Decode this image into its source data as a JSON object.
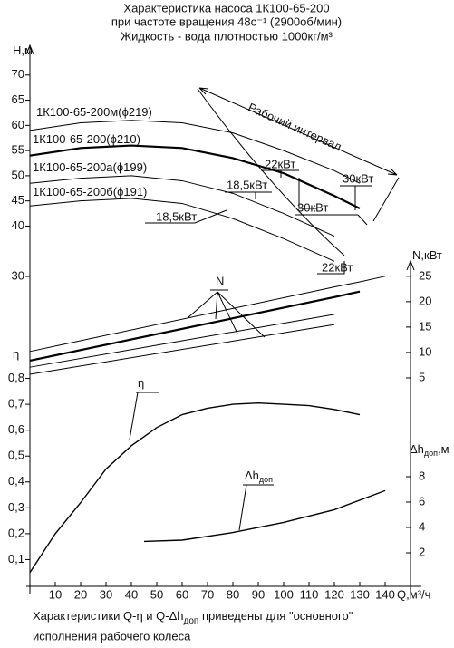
{
  "title": [
    "Характеристика насоса 1К100-65-200",
    "при частоте вращения 48с⁻¹ (2900об/мин)",
    "Жидкость - вода плотностью 1000кг/м³"
  ],
  "annotations": [
    "Рабочий интервал",
    "22кВт",
    "18,5кВт",
    "30кВт",
    "30кВт",
    "18,5кВт",
    "22кВт",
    "N"
  ],
  "footnote": {
    "before": "Характеристики Q-η и Q-Δh",
    "sub": "доп",
    "after": " приведены для \"основного\"",
    "line2": "исполнения рабочего колеса"
  },
  "chart_data": [
    {
      "type": "line",
      "ylabel": "Н,м",
      "axis_side": "left",
      "grid": false,
      "xlim": [
        0,
        150
      ],
      "ylim": [
        30,
        75
      ],
      "yticks": [
        30,
        40,
        45,
        50,
        55,
        60,
        65,
        70
      ],
      "x": [
        0,
        20,
        40,
        60,
        80,
        100,
        120,
        130
      ],
      "series": [
        {
          "name": "1К100-65-200м(ϕ219)",
          "color": "#000000",
          "width": 1,
          "values": [
            59,
            60.5,
            61,
            60.5,
            58.5,
            55,
            51,
            48.5
          ]
        },
        {
          "name": "1К100-65-200(ϕ210)",
          "color": "#000000",
          "width": 2.2,
          "values": [
            54,
            55.5,
            56,
            55.5,
            53.5,
            50.5,
            46,
            43.5
          ]
        },
        {
          "name": "1К100-65-200а(ϕ199)",
          "color": "#000000",
          "width": 1,
          "values": [
            48.5,
            49.5,
            50,
            49,
            46.5,
            42.5,
            38,
            null
          ]
        },
        {
          "name": "1К100-65-200б(ϕ191)",
          "color": "#000000",
          "width": 1,
          "values": [
            44,
            45,
            45.5,
            44.5,
            41.5,
            37.5,
            33,
            null
          ]
        }
      ]
    },
    {
      "type": "line",
      "ylabel": "N,кВт",
      "axis_side": "right",
      "grid": false,
      "xlim": [
        0,
        150
      ],
      "ylim": [
        0,
        28
      ],
      "yticks": [
        5,
        10,
        15,
        20,
        25
      ],
      "x": [
        0,
        120,
        130,
        140
      ],
      "series": [
        {
          "color": "#000000",
          "width": 1,
          "values": [
            10.2,
            22.9,
            23.9,
            25
          ]
        },
        {
          "color": "#000000",
          "width": 2.2,
          "values": [
            8.4,
            20.9,
            22.0,
            null
          ]
        },
        {
          "color": "#000000",
          "width": 1,
          "values": [
            7.1,
            17.5,
            null,
            null
          ]
        },
        {
          "color": "#000000",
          "width": 1,
          "values": [
            5.7,
            15.5,
            null,
            null
          ]
        }
      ]
    },
    {
      "type": "line",
      "ylabel": "η",
      "axis_side": "left",
      "grid": false,
      "xlim": [
        0,
        150
      ],
      "ylim": [
        0,
        0.9
      ],
      "yticks": [
        {
          "value": 0.1,
          "label": "0,1"
        },
        {
          "value": 0.2,
          "label": "0,2"
        },
        {
          "value": 0.3,
          "label": "0,3"
        },
        {
          "value": 0.4,
          "label": "0,4"
        },
        {
          "value": 0.5,
          "label": "0,5"
        },
        {
          "value": 0.6,
          "label": "0,6"
        },
        {
          "value": 0.7,
          "label": "0,7"
        },
        {
          "value": 0.8,
          "label": "0,8"
        }
      ],
      "x": [
        0,
        10,
        20,
        30,
        40,
        50,
        60,
        70,
        80,
        90,
        100,
        110,
        120,
        130
      ],
      "series": [
        {
          "name": "η",
          "color": "#000000",
          "width": 1.4,
          "values": [
            0.05,
            0.2,
            0.32,
            0.45,
            0.54,
            0.61,
            0.66,
            0.685,
            0.7,
            0.705,
            0.7,
            0.695,
            0.68,
            0.66
          ]
        }
      ]
    },
    {
      "type": "line",
      "ylabel": "Δh",
      "ylabel_sub": "доп",
      "ylabel_unit": ",м",
      "axis_side": "right",
      "grid": false,
      "xlim": [
        0,
        150
      ],
      "ylim": [
        0,
        10
      ],
      "yticks": [
        2,
        4,
        6,
        8
      ],
      "xticks": [
        10,
        20,
        30,
        40,
        50,
        60,
        70,
        80,
        90,
        100,
        110,
        120,
        130,
        140
      ],
      "xlabel": "Q,м³/ч",
      "x": [
        45,
        60,
        80,
        100,
        120,
        140
      ],
      "series": [
        {
          "name": "Δh",
          "name_sub": "доп",
          "color": "#000000",
          "width": 1.4,
          "values": [
            2.9,
            3.0,
            3.6,
            4.4,
            5.4,
            6.9
          ]
        }
      ]
    }
  ]
}
